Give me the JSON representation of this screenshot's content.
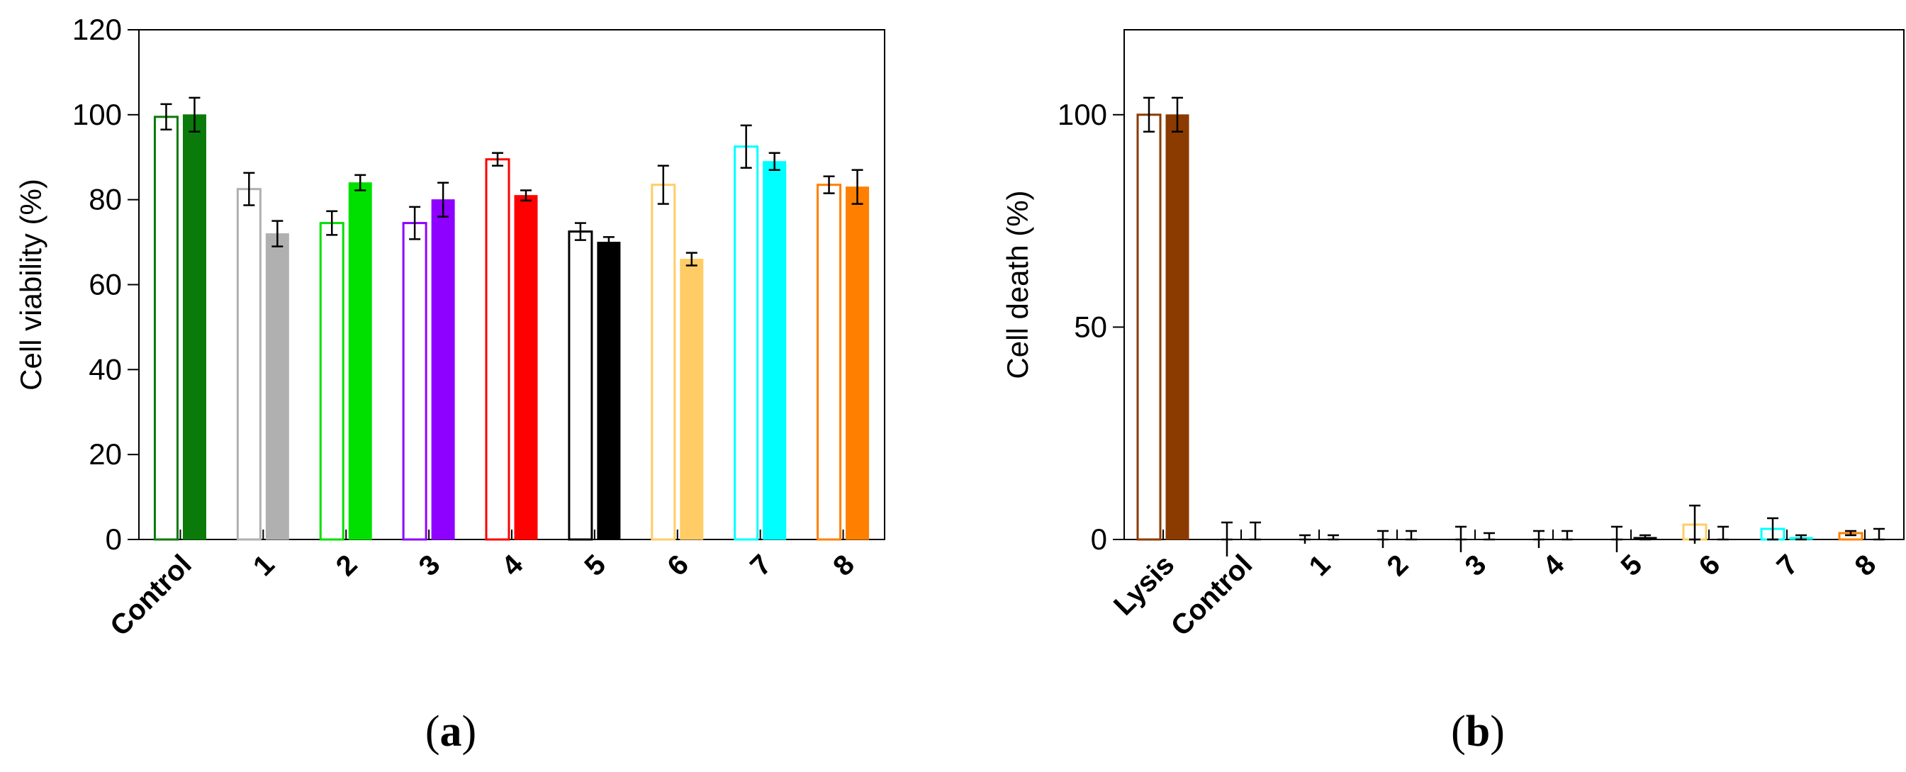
{
  "chart_data": [
    {
      "id": "a",
      "type": "bar",
      "panel_label": "a",
      "title": "",
      "xlabel": "",
      "ylabel": "Cell viability (%)",
      "ylim": [
        0,
        120
      ],
      "yticks": [
        0,
        20,
        40,
        60,
        80,
        100,
        120
      ],
      "categories": [
        "Control",
        "1",
        "2",
        "3",
        "4",
        "5",
        "6",
        "7",
        "8"
      ],
      "colors": [
        "#0a7a0a",
        "#b0b0b0",
        "#00e000",
        "#8e00ff",
        "#ff0000",
        "#000000",
        "#ffcc66",
        "#00ffff",
        "#ff8000"
      ],
      "series": [
        {
          "name": "open",
          "style": "outline",
          "values": [
            99.5,
            82.5,
            74.5,
            74.5,
            89.5,
            72.5,
            83.5,
            92.5,
            83.5
          ],
          "errors": [
            3,
            3.8,
            2.8,
            3.8,
            1.5,
            2,
            4.5,
            5,
            2
          ]
        },
        {
          "name": "filled",
          "style": "filled",
          "values": [
            100,
            72,
            84,
            80,
            81,
            70,
            66,
            89,
            83
          ],
          "errors": [
            4,
            3,
            1.8,
            4,
            1.2,
            1.2,
            1.5,
            2,
            4
          ]
        }
      ]
    },
    {
      "id": "b",
      "type": "bar",
      "panel_label": "b",
      "title": "",
      "xlabel": "",
      "ylabel": "Cell death (%)",
      "ylim": [
        0,
        120
      ],
      "yticks": [
        0,
        50,
        100
      ],
      "categories": [
        "Lysis",
        "Control",
        "1",
        "2",
        "3",
        "4",
        "5",
        "6",
        "7",
        "8"
      ],
      "colors": [
        "#8b3a00",
        "#0a7a0a",
        "#b0b0b0",
        "#00e000",
        "#8e00ff",
        "#ff0000",
        "#000000",
        "#ffcc66",
        "#00ffff",
        "#ff8000"
      ],
      "series": [
        {
          "name": "open",
          "style": "outline",
          "values": [
            100,
            0,
            0,
            0,
            0,
            0,
            0,
            3.5,
            2.5,
            1.5
          ],
          "errors": [
            4,
            4,
            1,
            2,
            3,
            2,
            3,
            4.5,
            2.5,
            0.5
          ]
        },
        {
          "name": "filled",
          "style": "filled",
          "values": [
            100,
            0,
            0,
            0,
            0,
            0,
            0.5,
            0,
            0.5,
            0
          ],
          "errors": [
            4,
            4,
            1,
            2,
            1.5,
            2,
            0.5,
            3,
            0.5,
            2.5
          ]
        }
      ]
    }
  ]
}
